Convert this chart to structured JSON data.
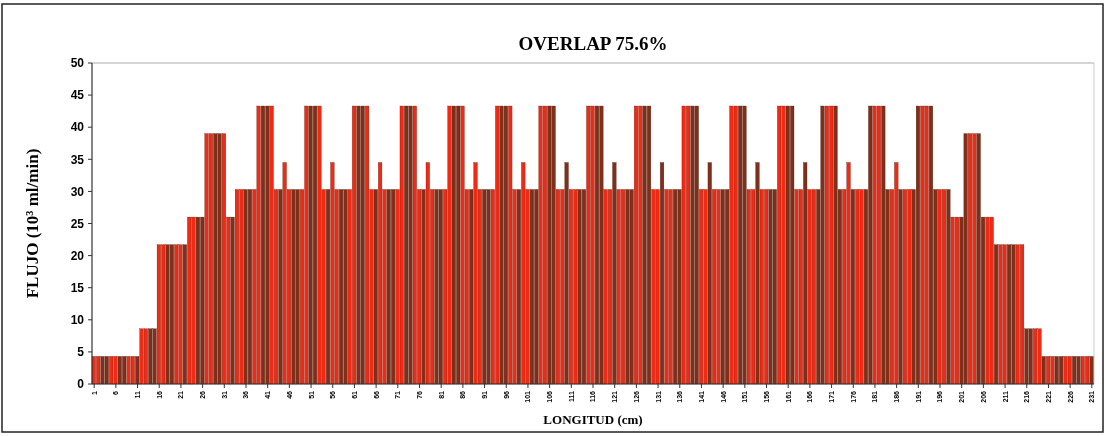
{
  "chart_data": {
    "type": "bar",
    "title": "OVERLAP 75.6%",
    "xlabel": "LONGITUD (cm)",
    "ylabel": "FLUJO (10³ ml/min)",
    "x": [
      1,
      2,
      3,
      4,
      5,
      6,
      7,
      8,
      9,
      10,
      11,
      12,
      13,
      14,
      15,
      16,
      17,
      18,
      19,
      20,
      21,
      22,
      23,
      24,
      25,
      26,
      27,
      28,
      29,
      30,
      31,
      32,
      33,
      34,
      35,
      36,
      37,
      38,
      39,
      40,
      41,
      42,
      43,
      44,
      45,
      46,
      47,
      48,
      49,
      50,
      51,
      52,
      53,
      54,
      55,
      56,
      57,
      58,
      59,
      60,
      61,
      62,
      63,
      64,
      65,
      66,
      67,
      68,
      69,
      70,
      71,
      72,
      73,
      74,
      75,
      76,
      77,
      78,
      79,
      80,
      81,
      82,
      83,
      84,
      85,
      86,
      87,
      88,
      89,
      90,
      91,
      92,
      93,
      94,
      95,
      96,
      97,
      98,
      99,
      100,
      101,
      102,
      103,
      104,
      105,
      106,
      107,
      108,
      109,
      110,
      111,
      112,
      113,
      114,
      115,
      116,
      117,
      118,
      119,
      120,
      121,
      122,
      123,
      124,
      125,
      126,
      127,
      128,
      129,
      130,
      131,
      132,
      133,
      134,
      135,
      136,
      137,
      138,
      139,
      140,
      141,
      142,
      143,
      144,
      145,
      146,
      147,
      148,
      149,
      150,
      151,
      152,
      153,
      154,
      155,
      156,
      157,
      158,
      159,
      160,
      161,
      162,
      163,
      164,
      165,
      166,
      167,
      168,
      169,
      170,
      171,
      172,
      173,
      174,
      175,
      176,
      177,
      178,
      179,
      180,
      181,
      182,
      183,
      184,
      185,
      186,
      187,
      188,
      189,
      190,
      191,
      192,
      193,
      194,
      195,
      196,
      197,
      198,
      199,
      200,
      201,
      202,
      203,
      204,
      205,
      206,
      207,
      208,
      209,
      210,
      211,
      212,
      213,
      214,
      215,
      216,
      217,
      218,
      219,
      220,
      221,
      222,
      223,
      224,
      225,
      226,
      227,
      228,
      229,
      230,
      231
    ],
    "values": [
      4.3,
      4.3,
      4.3,
      4.3,
      4.3,
      4.3,
      4.3,
      4.3,
      4.3,
      4.3,
      4.3,
      8.6,
      8.6,
      8.6,
      8.6,
      21.7,
      21.7,
      21.7,
      21.7,
      21.7,
      21.7,
      21.7,
      26,
      26,
      26,
      26,
      39,
      39,
      39,
      39,
      39,
      26,
      26,
      30.3,
      30.3,
      30.3,
      30.3,
      30.3,
      43.3,
      43.3,
      43.3,
      43.3,
      30.3,
      30.3,
      34.5,
      30.3,
      30.3,
      30.3,
      30.3,
      43.3,
      43.3,
      43.3,
      43.3,
      30.3,
      30.3,
      34.5,
      30.3,
      30.3,
      30.3,
      30.3,
      43.3,
      43.3,
      43.3,
      43.3,
      30.3,
      30.3,
      34.5,
      30.3,
      30.3,
      30.3,
      30.3,
      43.3,
      43.3,
      43.3,
      43.3,
      30.3,
      30.3,
      34.5,
      30.3,
      30.3,
      30.3,
      30.3,
      43.3,
      43.3,
      43.3,
      43.3,
      30.3,
      30.3,
      34.5,
      30.3,
      30.3,
      30.3,
      30.3,
      43.3,
      43.3,
      43.3,
      43.3,
      30.3,
      30.3,
      34.5,
      30.3,
      30.3,
      30.3,
      43.3,
      43.3,
      43.3,
      43.3,
      30.3,
      30.3,
      34.5,
      30.3,
      30.3,
      30.3,
      30.3,
      43.3,
      43.3,
      43.3,
      43.3,
      30.3,
      30.3,
      34.5,
      30.3,
      30.3,
      30.3,
      30.3,
      43.3,
      43.3,
      43.3,
      43.3,
      30.3,
      30.3,
      34.5,
      30.3,
      30.3,
      30.3,
      30.3,
      43.3,
      43.3,
      43.3,
      43.3,
      30.3,
      30.3,
      34.5,
      30.3,
      30.3,
      30.3,
      30.3,
      43.3,
      43.3,
      43.3,
      43.3,
      30.3,
      30.3,
      34.5,
      30.3,
      30.3,
      30.3,
      30.3,
      43.3,
      43.3,
      43.3,
      43.3,
      30.3,
      30.3,
      34.5,
      30.3,
      30.3,
      30.3,
      43.3,
      43.3,
      43.3,
      43.3,
      30.3,
      30.3,
      34.5,
      30.3,
      30.3,
      30.3,
      30.3,
      43.3,
      43.3,
      43.3,
      43.3,
      30.3,
      30.3,
      34.5,
      30.3,
      30.3,
      30.3,
      30.3,
      43.3,
      43.3,
      43.3,
      43.3,
      30.3,
      30.3,
      30.3,
      30.3,
      26,
      26,
      26,
      39,
      39,
      39,
      39,
      26,
      26,
      26,
      21.7,
      21.7,
      21.7,
      21.7,
      21.7,
      21.7,
      21.7,
      8.6,
      8.6,
      8.6,
      8.6,
      4.3,
      4.3,
      4.3,
      4.3,
      4.3,
      4.3,
      4.3,
      4.3,
      4.3,
      4.3,
      4.3,
      4.3
    ],
    "colors": [
      "#f22a14",
      "#f22a14",
      "#80301a",
      "#80301a",
      "#f22a14",
      "#f22a14",
      "#80301a",
      "#80301a",
      "#f22a14",
      "#f22a14",
      "#80301a",
      "#f22a14",
      "#f22a14",
      "#80301a",
      "#80301a",
      "#f22a14",
      "#f22a14",
      "#80301a",
      "#80301a",
      "#f22a14",
      "#f22a14",
      "#80301a",
      "#f22a14",
      "#f22a14",
      "#80301a",
      "#80301a",
      "#f22a14",
      "#f22a14",
      "#80301a",
      "#80301a",
      "#f22a14",
      "#f22a14",
      "#80301a",
      "#f22a14",
      "#f22a14",
      "#80301a",
      "#80301a",
      "#f22a14",
      "#f22a14",
      "#80301a",
      "#80301a",
      "#f22a14",
      "#f22a14",
      "#80301a",
      "#f22a14",
      "#f22a14",
      "#80301a",
      "#80301a",
      "#f22a14",
      "#f22a14",
      "#80301a",
      "#80301a",
      "#f22a14",
      "#f22a14",
      "#80301a",
      "#f22a14",
      "#f22a14",
      "#80301a",
      "#80301a",
      "#f22a14",
      "#f22a14",
      "#80301a",
      "#80301a",
      "#f22a14",
      "#f22a14",
      "#80301a",
      "#f22a14",
      "#f22a14",
      "#80301a",
      "#80301a",
      "#f22a14",
      "#f22a14",
      "#80301a",
      "#80301a",
      "#f22a14",
      "#f22a14",
      "#80301a",
      "#f22a14",
      "#f22a14",
      "#80301a",
      "#80301a",
      "#f22a14",
      "#f22a14",
      "#80301a",
      "#80301a",
      "#f22a14",
      "#f22a14",
      "#80301a",
      "#f22a14",
      "#f22a14",
      "#80301a",
      "#80301a",
      "#f22a14",
      "#f22a14",
      "#80301a",
      "#80301a",
      "#f22a14",
      "#f22a14",
      "#80301a",
      "#f22a14",
      "#f22a14",
      "#80301a",
      "#80301a",
      "#f22a14",
      "#f22a14",
      "#80301a",
      "#80301a",
      "#f22a14",
      "#f22a14",
      "#80301a",
      "#f22a14",
      "#f22a14",
      "#80301a",
      "#80301a",
      "#f22a14",
      "#f22a14",
      "#80301a",
      "#80301a",
      "#f22a14",
      "#f22a14",
      "#80301a",
      "#f22a14",
      "#f22a14",
      "#80301a",
      "#80301a",
      "#f22a14",
      "#f22a14",
      "#80301a",
      "#80301a",
      "#f22a14",
      "#f22a14",
      "#80301a",
      "#f22a14",
      "#f22a14",
      "#80301a",
      "#80301a",
      "#f22a14",
      "#f22a14",
      "#80301a",
      "#80301a",
      "#f22a14",
      "#f22a14",
      "#80301a",
      "#f22a14",
      "#f22a14",
      "#80301a",
      "#80301a",
      "#f22a14",
      "#f22a14",
      "#80301a",
      "#80301a",
      "#f22a14",
      "#f22a14",
      "#80301a",
      "#f22a14",
      "#f22a14",
      "#80301a",
      "#80301a",
      "#f22a14",
      "#f22a14",
      "#80301a",
      "#80301a",
      "#f22a14",
      "#f22a14",
      "#80301a",
      "#f22a14",
      "#f22a14",
      "#80301a",
      "#80301a",
      "#f22a14",
      "#f22a14",
      "#80301a",
      "#80301a",
      "#f22a14",
      "#f22a14",
      "#80301a",
      "#f22a14",
      "#f22a14",
      "#80301a",
      "#80301a",
      "#f22a14",
      "#f22a14",
      "#80301a",
      "#80301a",
      "#f22a14",
      "#f22a14",
      "#80301a",
      "#f22a14",
      "#f22a14",
      "#80301a",
      "#80301a",
      "#f22a14",
      "#f22a14",
      "#80301a",
      "#80301a",
      "#f22a14",
      "#f22a14",
      "#80301a",
      "#f22a14",
      "#f22a14",
      "#80301a",
      "#80301a",
      "#f22a14",
      "#f22a14",
      "#80301a",
      "#80301a",
      "#f22a14",
      "#f22a14",
      "#80301a",
      "#f22a14",
      "#f22a14",
      "#80301a",
      "#80301a",
      "#f22a14",
      "#f22a14",
      "#80301a",
      "#80301a",
      "#f22a14",
      "#f22a14",
      "#80301a",
      "#f22a14",
      "#f22a14",
      "#80301a",
      "#80301a",
      "#f22a14",
      "#f22a14",
      "#80301a",
      "#80301a",
      "#f22a14",
      "#f22a14",
      "#80301a"
    ],
    "xlim": [
      0.5,
      231.5
    ],
    "xticks": [
      1,
      6,
      11,
      16,
      21,
      26,
      31,
      36,
      41,
      46,
      51,
      56,
      61,
      66,
      71,
      76,
      81,
      86,
      91,
      96,
      101,
      106,
      111,
      116,
      121,
      126,
      131,
      136,
      141,
      146,
      151,
      156,
      161,
      166,
      171,
      176,
      181,
      186,
      191,
      196,
      201,
      206,
      211,
      216,
      221,
      226,
      231
    ],
    "ylim": [
      0,
      50
    ],
    "yticks": [
      0,
      5,
      10,
      15,
      20,
      25,
      30,
      35,
      40,
      45,
      50
    ]
  }
}
